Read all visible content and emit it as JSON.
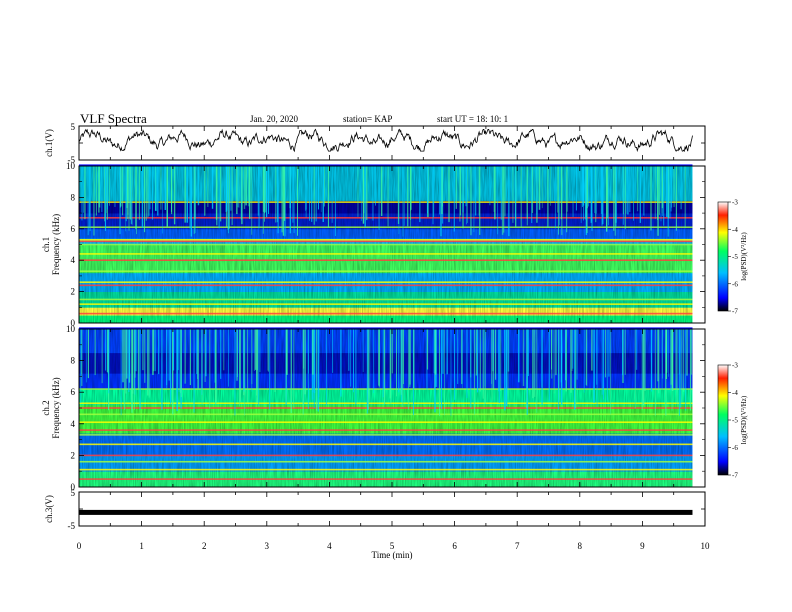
{
  "header": {
    "title": "VLF Spectra",
    "date": "Jan. 20, 2020",
    "station": "station= KAP",
    "start": "start  UT =   18: 10: 1"
  },
  "chart_data": {
    "type": "heatmap",
    "x_axis": {
      "label": "Time (min)",
      "range": [
        0,
        10
      ],
      "ticks": [
        "0",
        "1",
        "2",
        "3",
        "4",
        "5",
        "6",
        "7",
        "8",
        "9",
        "10"
      ]
    },
    "panels": [
      {
        "id": "ch1-waveform",
        "type": "line",
        "ylabel": "ch.1(V)",
        "ylim": [
          -5,
          5
        ],
        "yticks": [
          "5",
          "-5"
        ]
      },
      {
        "id": "ch1-spectrogram",
        "type": "heatmap",
        "ylabel_channel": "ch.1",
        "ylabel": "Frequency (kHz)",
        "ylim": [
          0,
          10
        ],
        "yticks": [
          "0",
          "2",
          "4",
          "6",
          "8",
          "10"
        ],
        "colorbar": {
          "label": "log(PSD)(V²/Hz)",
          "range": [
            -7,
            -3
          ],
          "ticks": [
            "-3",
            "-4",
            "-5",
            "-6",
            "-7"
          ]
        }
      },
      {
        "id": "ch2-spectrogram",
        "type": "heatmap",
        "ylabel_channel": "ch.2",
        "ylabel": "Frequency (kHz)",
        "ylim": [
          0,
          10
        ],
        "yticks": [
          "0",
          "2",
          "4",
          "6",
          "8",
          "10"
        ],
        "colorbar": {
          "label": "log(PSD)(V²/Hz)",
          "range": [
            -7,
            -3
          ],
          "ticks": [
            "-3",
            "-4",
            "-5",
            "-6",
            "-7"
          ]
        }
      },
      {
        "id": "ch3-waveform",
        "type": "line",
        "ylabel": "ch.3(V)",
        "ylim": [
          -5,
          5
        ],
        "yticks": [
          "5",
          "-5"
        ],
        "note": "flat signal near -1 V"
      }
    ],
    "data_extent_min": 9.8,
    "colormap": [
      "#00007f",
      "#0000ff",
      "#00bfff",
      "#00ff80",
      "#ffff00",
      "#ff8000",
      "#ff0000",
      "#7f0000"
    ]
  }
}
